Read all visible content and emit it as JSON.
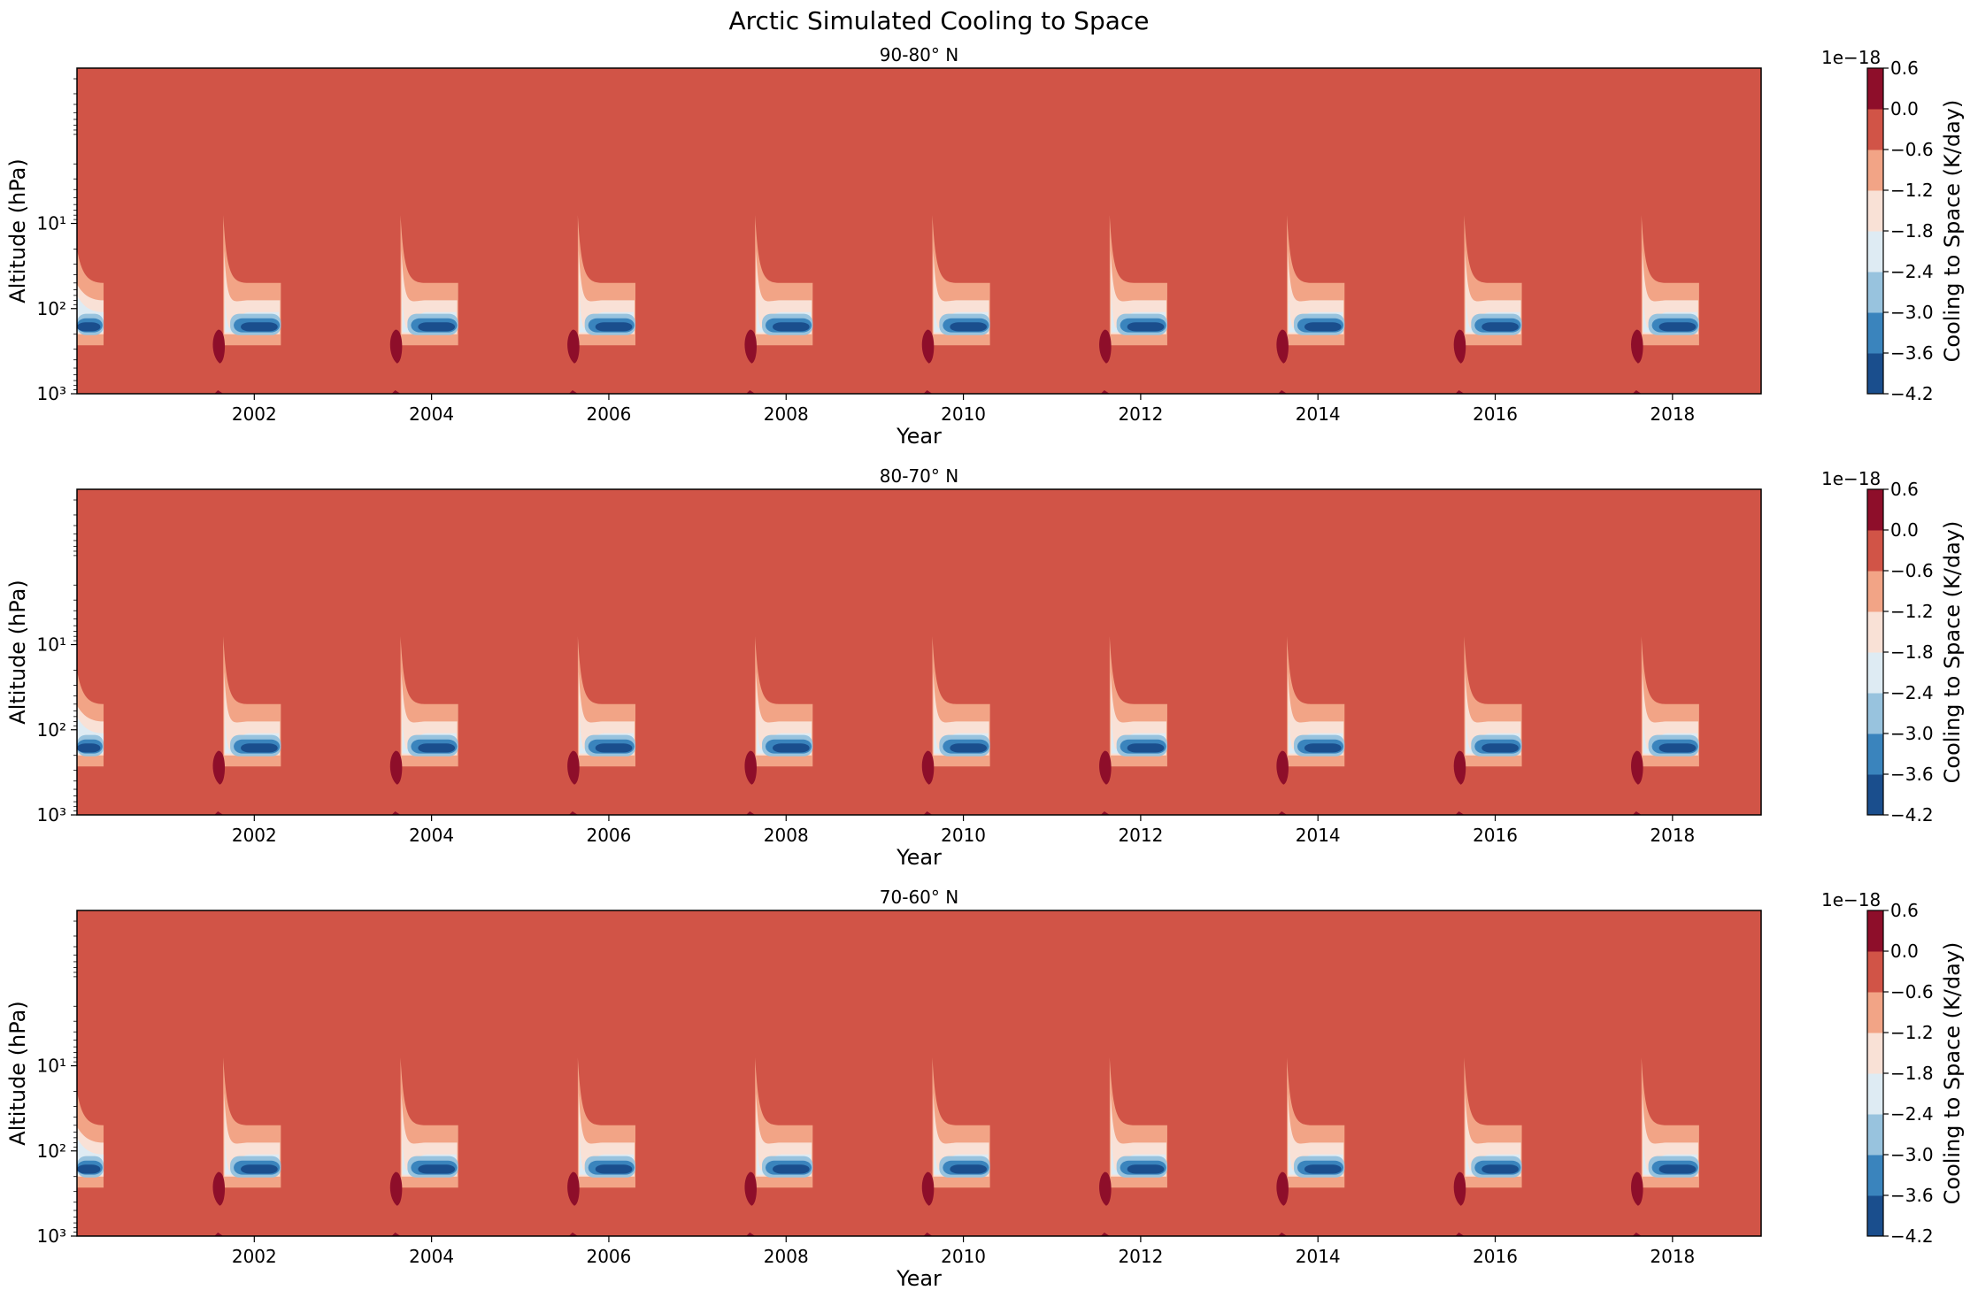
{
  "figure": {
    "title": "Arctic Simulated Cooling to Space"
  },
  "colors": {
    "levels": [
      "#1a4e8d",
      "#3a84bd",
      "#98c3de",
      "#deebf3",
      "#f9e1d6",
      "#f2a486",
      "#d15447",
      "#8e0e2a"
    ],
    "frame": "#000000"
  },
  "colorbar": {
    "label": "Cooling to Space (K/day)",
    "offset_text": "1e−18",
    "ticks": [
      "0.6",
      "0.0",
      "−0.6",
      "−1.2",
      "−1.8",
      "−2.4",
      "−3.0",
      "−3.6",
      "−4.2"
    ]
  },
  "chart_data": [
    {
      "type": "heatmap",
      "title": "90-80° N",
      "xlabel": "Year",
      "ylabel": "Altitude (hPa)",
      "xticks": [
        "2002",
        "2004",
        "2006",
        "2008",
        "2010",
        "2012",
        "2014",
        "2016",
        "2018"
      ],
      "yticks": [
        "10¹",
        "10²",
        "10³"
      ],
      "xlim": [
        2000.0,
        2019.0
      ],
      "ylim_hPa": [
        1000,
        0.15
      ],
      "y_scale": "log, inverted",
      "levels": [
        -4.2,
        -3.6,
        -3.0,
        -2.4,
        -1.8,
        -1.2,
        -0.6,
        0.0,
        0.6
      ],
      "level_multiplier": "1e-18",
      "background_level": [
        -0.6,
        0.0
      ],
      "seasonal_cooling_events_year": [
        2000.0,
        2001.65,
        2003.65,
        2005.65,
        2007.65,
        2009.65,
        2011.65,
        2013.65,
        2015.65,
        2017.65
      ],
      "event_end_year": [
        2000.3,
        2002.3,
        2004.3,
        2006.3,
        2008.3,
        2010.3,
        2012.3,
        2014.3,
        2016.3,
        2018.3
      ],
      "max_cooling_altitude_hPa": 170,
      "min_value": -4.2,
      "max_value": 0.6
    },
    {
      "type": "heatmap",
      "title": "80-70° N",
      "xlabel": "Year",
      "ylabel": "Altitude (hPa)",
      "xticks": [
        "2002",
        "2004",
        "2006",
        "2008",
        "2010",
        "2012",
        "2014",
        "2016",
        "2018"
      ],
      "yticks": [
        "10¹",
        "10²",
        "10³"
      ],
      "xlim": [
        2000.0,
        2019.0
      ],
      "ylim_hPa": [
        1000,
        0.15
      ],
      "y_scale": "log, inverted",
      "levels": [
        -4.2,
        -3.6,
        -3.0,
        -2.4,
        -1.8,
        -1.2,
        -0.6,
        0.0,
        0.6
      ],
      "level_multiplier": "1e-18",
      "background_level": [
        -0.6,
        0.0
      ],
      "seasonal_cooling_events_year": [
        2000.0,
        2001.65,
        2003.65,
        2005.65,
        2007.65,
        2009.65,
        2011.65,
        2013.65,
        2015.65,
        2017.65
      ],
      "event_end_year": [
        2000.3,
        2002.3,
        2004.3,
        2006.3,
        2008.3,
        2010.3,
        2012.3,
        2014.3,
        2016.3,
        2018.3
      ],
      "max_cooling_altitude_hPa": 170,
      "min_value": -4.2,
      "max_value": 0.6
    },
    {
      "type": "heatmap",
      "title": "70-60° N",
      "xlabel": "Year",
      "ylabel": "Altitude (hPa)",
      "xticks": [
        "2002",
        "2004",
        "2006",
        "2008",
        "2010",
        "2012",
        "2014",
        "2016",
        "2018"
      ],
      "yticks": [
        "10¹",
        "10²",
        "10³"
      ],
      "xlim": [
        2000.0,
        2019.0
      ],
      "ylim_hPa": [
        1000,
        0.15
      ],
      "y_scale": "log, inverted",
      "levels": [
        -4.2,
        -3.6,
        -3.0,
        -2.4,
        -1.8,
        -1.2,
        -0.6,
        0.0,
        0.6
      ],
      "level_multiplier": "1e-18",
      "background_level": [
        -0.6,
        0.0
      ],
      "seasonal_cooling_events_year": [
        2000.0,
        2001.65,
        2003.65,
        2005.65,
        2007.65,
        2009.65,
        2011.65,
        2013.65,
        2015.65,
        2017.65
      ],
      "event_end_year": [
        2000.3,
        2002.3,
        2004.3,
        2006.3,
        2008.3,
        2010.3,
        2012.3,
        2014.3,
        2016.3,
        2018.3
      ],
      "max_cooling_altitude_hPa": 170,
      "min_value": -4.2,
      "max_value": 0.6
    }
  ]
}
